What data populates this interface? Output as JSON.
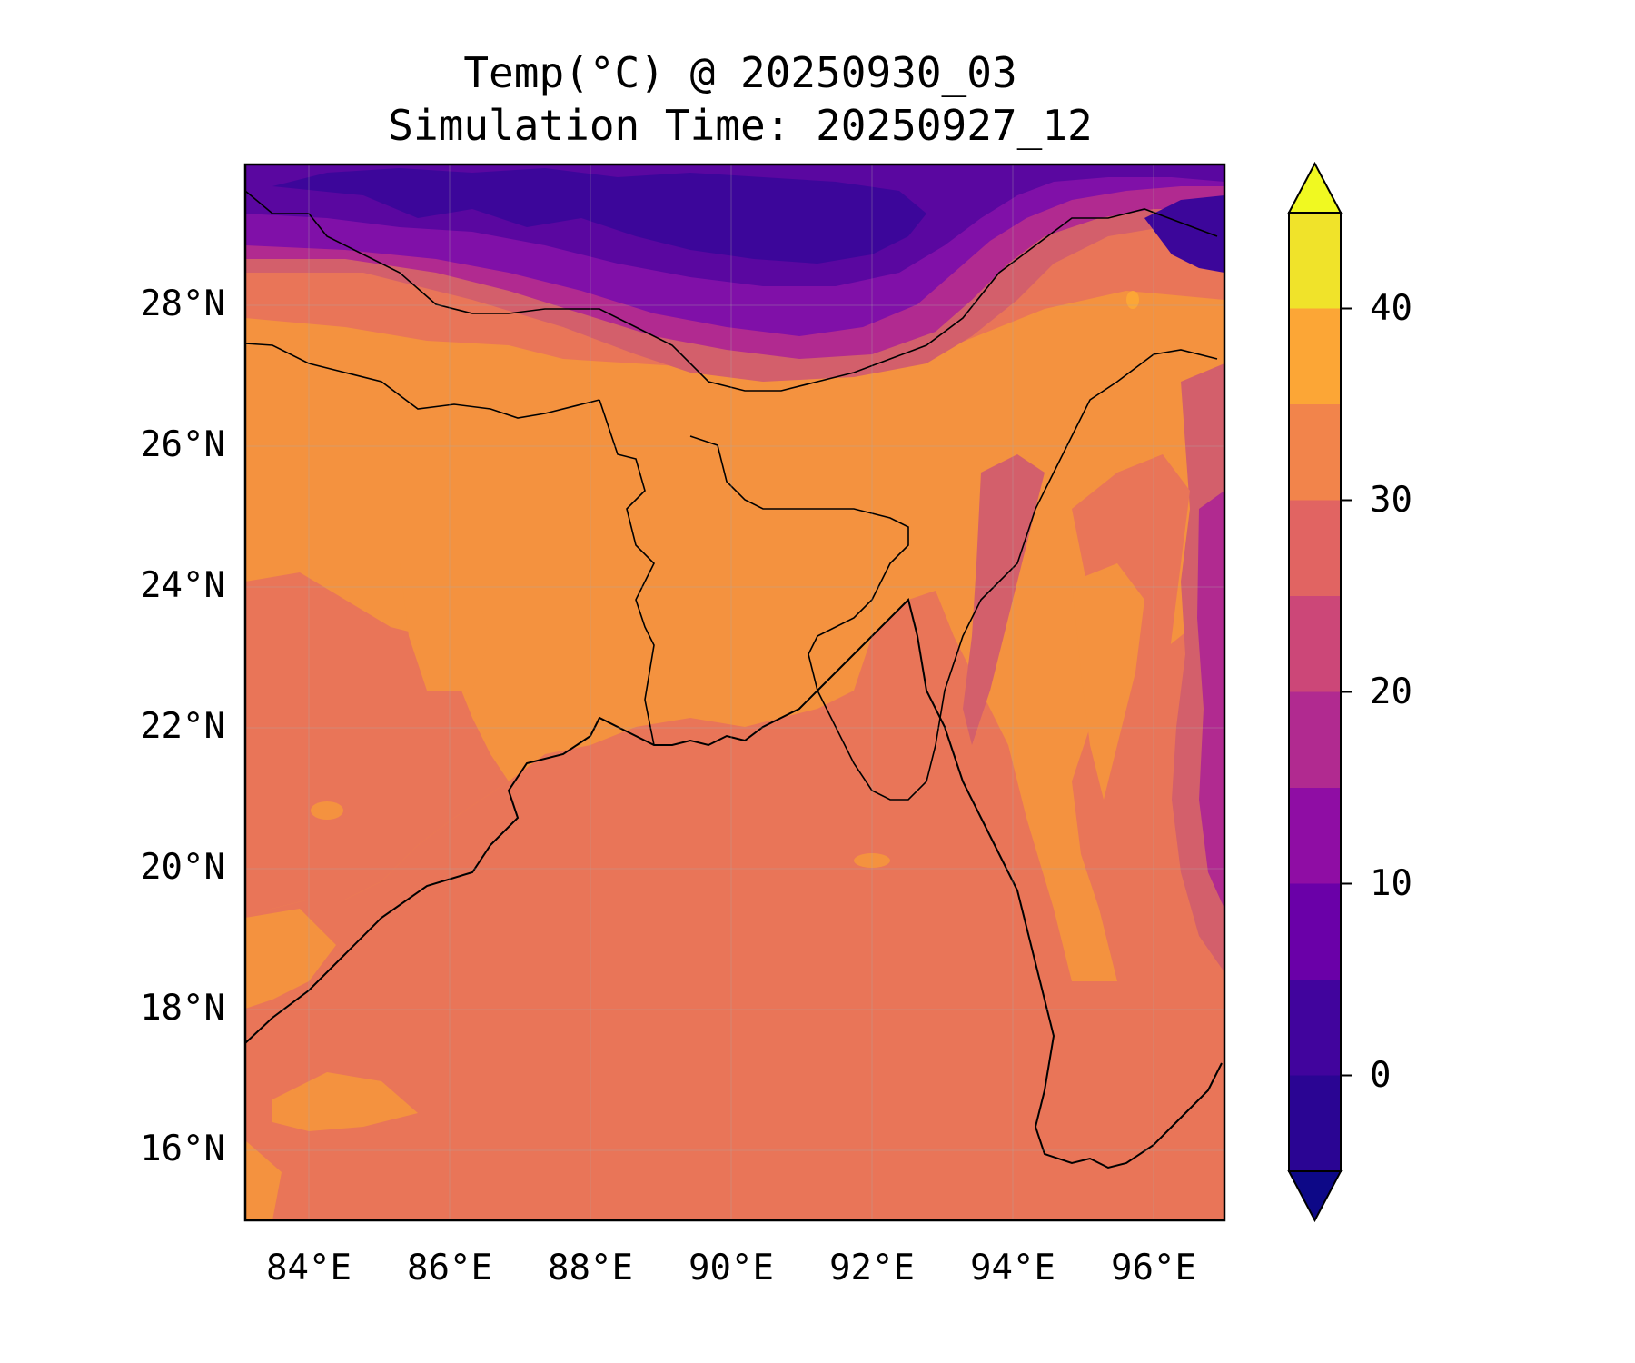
{
  "title": {
    "line1": "Temp(°C) @ 20250930_03",
    "line2": "Simulation Time: 20250927_12"
  },
  "map": {
    "lon_range": [
      83.1,
      97.0
    ],
    "lat_range": [
      15.0,
      30.0
    ],
    "lat_ticks": [
      "28°N",
      "26°N",
      "24°N",
      "22°N",
      "20°N",
      "18°N",
      "16°N"
    ],
    "lon_ticks": [
      "84°E",
      "86°E",
      "88°E",
      "90°E",
      "92°E",
      "94°E",
      "96°E"
    ],
    "grid": true,
    "coastlines": true,
    "borders": true
  },
  "colorbar": {
    "ticks": [
      "40",
      "30",
      "20",
      "10",
      "0"
    ],
    "levels": [
      -5,
      0,
      5,
      10,
      15,
      20,
      25,
      30,
      35,
      40,
      45
    ],
    "extend": "both",
    "colors": [
      "#0d0887",
      "#2a0593",
      "#41049d",
      "#6a00a8",
      "#8f0da4",
      "#b12a90",
      "#cc4778",
      "#e16462",
      "#f2844b",
      "#fca636",
      "#f0f921"
    ],
    "fill_colors_bottom_to_top": [
      "#2a0593",
      "#41049d",
      "#6a00a8",
      "#8f0da4",
      "#b12a90",
      "#cc4778",
      "#e16462",
      "#f2844b",
      "#fca636",
      "#f0e32a"
    ],
    "under_color": "#0d0887",
    "over_color": "#f0f921"
  },
  "field_colors": {
    "ocean": "#e97558",
    "warm_land": "#f4923f",
    "mid": "#d35f6b",
    "cool": "#b12a90",
    "cold": "#8010a8",
    "colder": "#5a07a0",
    "coldest": "#3c069a",
    "hot_spot": "#fca636"
  }
}
